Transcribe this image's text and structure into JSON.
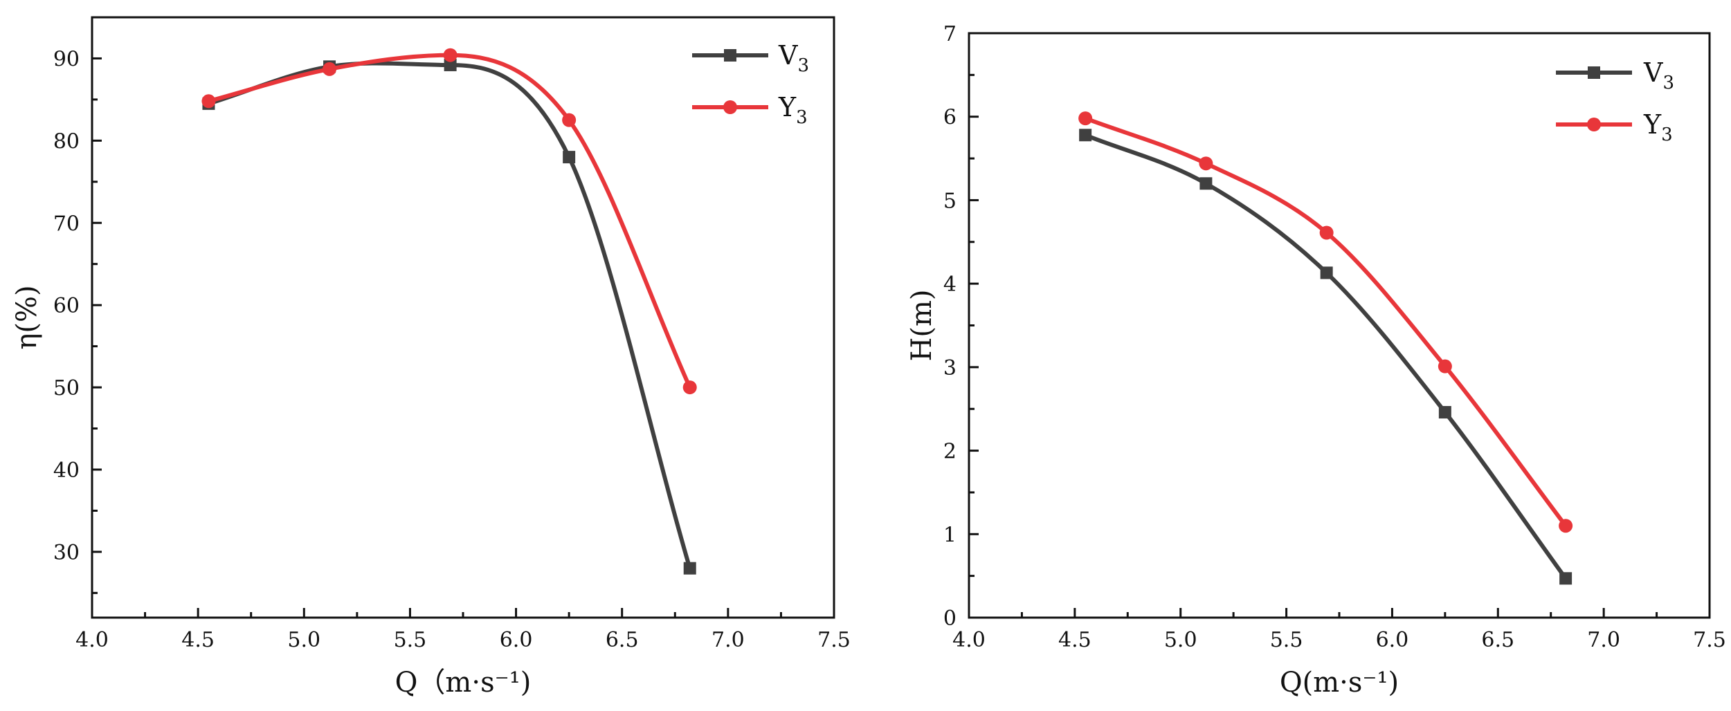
{
  "chart_data": [
    {
      "type": "line",
      "title": "",
      "xlabel": "Q（m·s⁻¹)",
      "ylabel": "η(%)",
      "xlim": [
        4.0,
        7.5
      ],
      "ylim": [
        22,
        95
      ],
      "x_ticks": [
        4.0,
        4.5,
        5.0,
        5.5,
        6.0,
        6.5,
        7.0,
        7.5
      ],
      "x_tick_labels": [
        "4.0",
        "4.5",
        "5.0",
        "5.5",
        "6.0",
        "6.5",
        "7.0",
        "7.5"
      ],
      "y_ticks": [
        30,
        40,
        50,
        60,
        70,
        80,
        90
      ],
      "y_tick_labels": [
        "30",
        "40",
        "50",
        "60",
        "70",
        "80",
        "90"
      ],
      "legend_position": "top-right",
      "grid": false,
      "series": [
        {
          "name": "V₃",
          "label": "V",
          "subscript": "3",
          "color": "#404040",
          "marker": "square",
          "x": [
            4.55,
            5.12,
            5.69,
            6.25,
            6.82
          ],
          "values": [
            84.5,
            89.0,
            89.2,
            78.0,
            28.0
          ]
        },
        {
          "name": "Y₃",
          "label": "Y",
          "subscript": "3",
          "color": "#e8363a",
          "marker": "circle",
          "x": [
            4.55,
            5.12,
            5.69,
            6.25,
            6.82
          ],
          "values": [
            84.8,
            88.7,
            90.4,
            82.5,
            50.0
          ]
        }
      ]
    },
    {
      "type": "line",
      "title": "",
      "xlabel": "Q(m·s⁻¹)",
      "ylabel": "H(m)",
      "xlim": [
        4.0,
        7.5
      ],
      "ylim": [
        0,
        7
      ],
      "x_ticks": [
        4.0,
        4.5,
        5.0,
        5.5,
        6.0,
        6.5,
        7.0,
        7.5
      ],
      "x_tick_labels": [
        "4.0",
        "4.5",
        "5.0",
        "5.5",
        "6.0",
        "6.5",
        "7.0",
        "7.5"
      ],
      "y_ticks": [
        0,
        1,
        2,
        3,
        4,
        5,
        6,
        7
      ],
      "y_tick_labels": [
        "0",
        "1",
        "2",
        "3",
        "4",
        "5",
        "6",
        "7"
      ],
      "legend_position": "top-right",
      "grid": false,
      "series": [
        {
          "name": "V₃",
          "label": "V",
          "subscript": "3",
          "color": "#404040",
          "marker": "square",
          "x": [
            4.55,
            5.12,
            5.69,
            6.25,
            6.82
          ],
          "values": [
            5.78,
            5.2,
            4.13,
            2.46,
            0.47
          ]
        },
        {
          "name": "Y₃",
          "label": "Y",
          "subscript": "3",
          "color": "#e8363a",
          "marker": "circle",
          "x": [
            4.55,
            5.12,
            5.69,
            6.25,
            6.82
          ],
          "values": [
            5.98,
            5.44,
            4.61,
            3.01,
            1.1
          ]
        }
      ]
    }
  ]
}
